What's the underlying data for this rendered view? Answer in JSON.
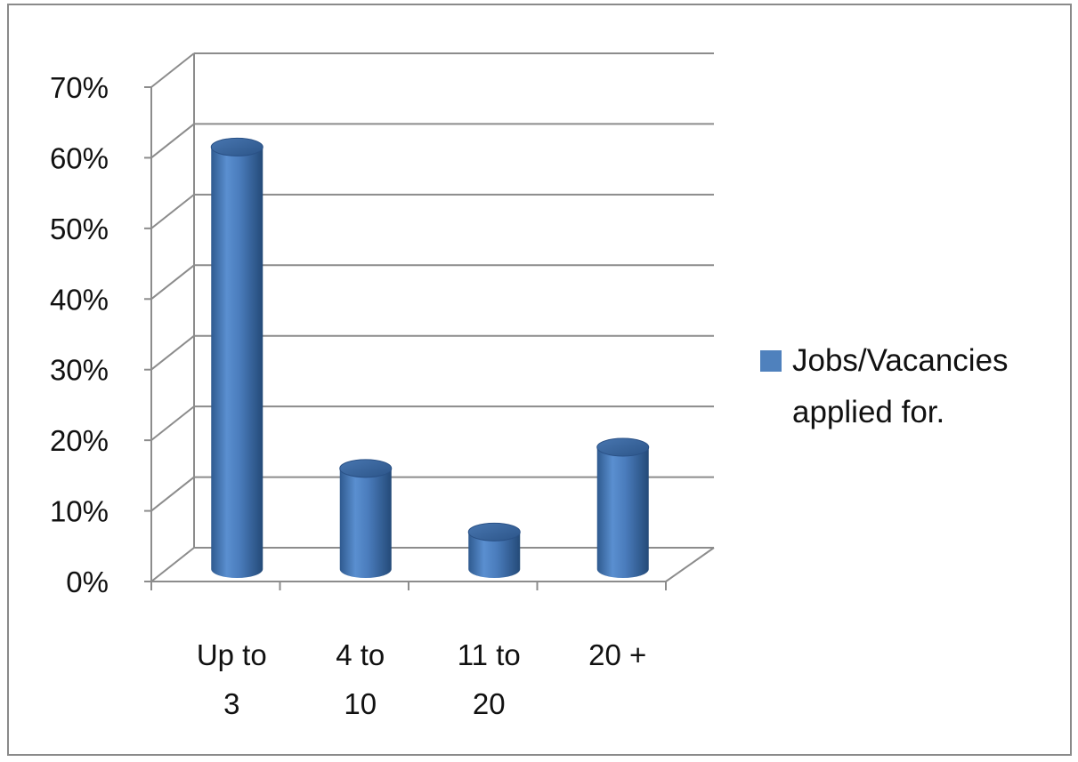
{
  "chart_data": {
    "type": "bar",
    "style": "3d-cylinder",
    "categories": [
      [
        "Up to",
        "3"
      ],
      [
        "4 to",
        "10"
      ],
      [
        "11 to",
        "20"
      ],
      [
        "20 +"
      ]
    ],
    "series": [
      {
        "name": [
          "Jobs/Vacancies",
          "applied for."
        ],
        "values": [
          60,
          14.5,
          5.5,
          17.5
        ],
        "color": "#4f81bd"
      }
    ],
    "yticks": [
      "0%",
      "10%",
      "20%",
      "30%",
      "40%",
      "50%",
      "60%",
      "70%"
    ],
    "ylim": [
      0,
      70
    ],
    "grid": true,
    "legend": "right"
  }
}
